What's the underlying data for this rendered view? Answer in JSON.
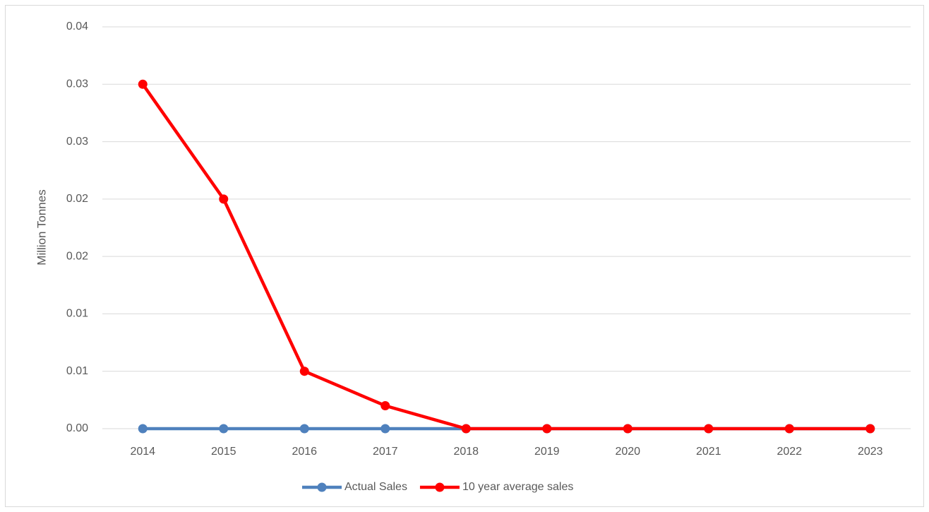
{
  "chart_data": {
    "type": "line",
    "y_label": "Million Tonnes",
    "categories": [
      "2014",
      "2015",
      "2016",
      "2017",
      "2018",
      "2019",
      "2020",
      "2021",
      "2022",
      "2023"
    ],
    "series": [
      {
        "name": "Actual Sales",
        "color": "#4f81bd",
        "values": [
          0,
          0,
          0,
          0,
          0,
          0,
          0,
          0,
          0,
          0
        ]
      },
      {
        "name": "10 year average sales",
        "color": "#ff0000",
        "values": [
          0.03,
          0.02,
          0.005,
          0.002,
          0,
          0,
          0,
          0,
          0,
          0
        ]
      }
    ],
    "ylim": [
      0,
      0.035
    ],
    "yticks": [
      {
        "value": 0,
        "label": "0.00"
      },
      {
        "value": 0.005,
        "label": "0.01"
      },
      {
        "value": 0.01,
        "label": "0.01"
      },
      {
        "value": 0.015,
        "label": "0.02"
      },
      {
        "value": 0.02,
        "label": "0.02"
      },
      {
        "value": 0.025,
        "label": "0.03"
      },
      {
        "value": 0.03,
        "label": "0.03"
      },
      {
        "value": 0.035,
        "label": "0.04"
      }
    ],
    "grid": true,
    "legend": "bottom"
  }
}
